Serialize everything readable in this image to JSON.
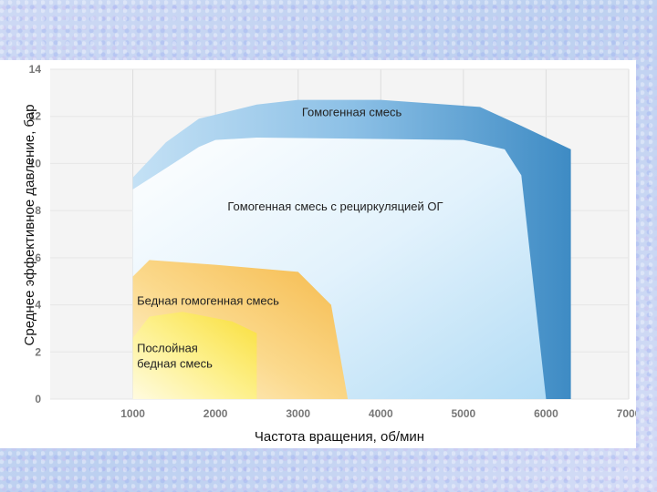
{
  "chart_data": {
    "type": "area",
    "title": "",
    "xlabel": "Частота вращения, об/мин",
    "ylabel": "Среднее эффективное давление, бар",
    "xlim": [
      0,
      7000
    ],
    "ylim": [
      0,
      14
    ],
    "x_ticks": [
      "1000",
      "2000",
      "3000",
      "4000",
      "5000",
      "6000",
      "7000"
    ],
    "y_ticks": [
      "0",
      "2",
      "4",
      "6",
      "8",
      "10",
      "12",
      "14"
    ],
    "grid": true,
    "regions": [
      {
        "name": "Гомогенная смесь",
        "color": "#3f8fc9",
        "boundary": [
          [
            1000,
            9.4
          ],
          [
            1400,
            10.9
          ],
          [
            1800,
            11.9
          ],
          [
            2500,
            12.5
          ],
          [
            3000,
            12.7
          ],
          [
            4000,
            12.7
          ],
          [
            5200,
            12.4
          ],
          [
            5700,
            11.6
          ],
          [
            6300,
            10.6
          ],
          [
            6300,
            0
          ],
          [
            1000,
            0
          ]
        ]
      },
      {
        "name": "Гомогенная смесь с рециркуляцией ОГ",
        "color": "#a9d7f3",
        "boundary": [
          [
            1000,
            8.9
          ],
          [
            1400,
            9.8
          ],
          [
            1800,
            10.7
          ],
          [
            2000,
            11.0
          ],
          [
            2500,
            11.1
          ],
          [
            5000,
            11.0
          ],
          [
            5500,
            10.6
          ],
          [
            5700,
            9.5
          ],
          [
            6000,
            0
          ],
          [
            1000,
            0
          ]
        ]
      },
      {
        "name": "Бедная гомогенная смесь",
        "color": "#f7c560",
        "boundary": [
          [
            1000,
            5.2
          ],
          [
            1200,
            5.9
          ],
          [
            2000,
            5.7
          ],
          [
            3000,
            5.4
          ],
          [
            3400,
            4.0
          ],
          [
            3600,
            0
          ],
          [
            1000,
            0
          ]
        ]
      },
      {
        "name": "Послойная бедная смесь",
        "color": "#fbe85a",
        "boundary": [
          [
            1000,
            2.6
          ],
          [
            1200,
            3.5
          ],
          [
            1600,
            3.7
          ],
          [
            2200,
            3.3
          ],
          [
            2500,
            2.8
          ],
          [
            2500,
            0
          ],
          [
            1000,
            0
          ]
        ]
      }
    ]
  }
}
